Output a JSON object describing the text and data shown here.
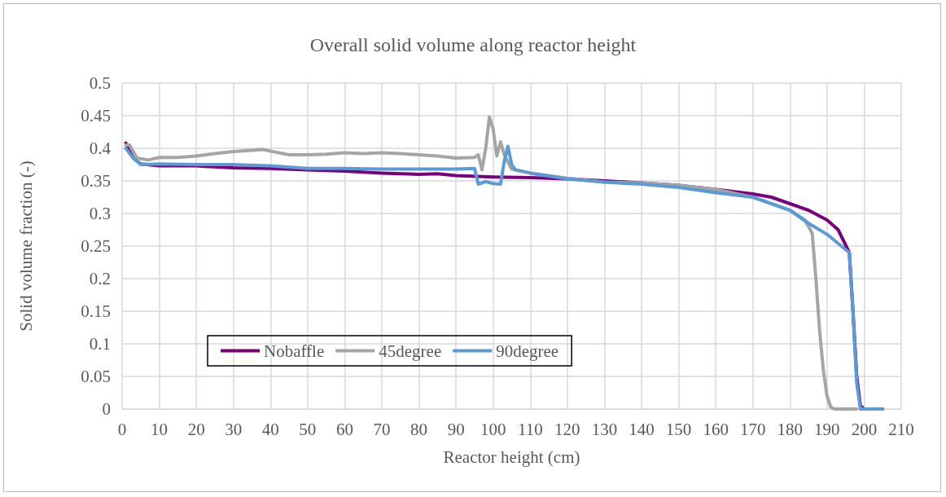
{
  "chart_data": {
    "type": "line",
    "title": "Overall solid volume along reactor height",
    "xlabel": "Reactor height (cm)",
    "ylabel": "Solid volume fraction (-)",
    "xlim": [
      0,
      210
    ],
    "xticks": [
      0,
      10,
      20,
      30,
      40,
      50,
      60,
      70,
      80,
      90,
      100,
      110,
      120,
      130,
      140,
      150,
      160,
      170,
      180,
      190,
      200,
      210
    ],
    "ylim": [
      0,
      0.5
    ],
    "yticks": [
      0,
      0.05,
      0.1,
      0.15,
      0.2,
      0.25,
      0.3,
      0.35,
      0.4,
      0.45,
      0.5
    ],
    "grid": true,
    "legend": "bottom left",
    "marker": "none",
    "line_style": "solid",
    "series": [
      {
        "name": "Nobaffle",
        "color": "#7b007b",
        "x": [
          1,
          3,
          5,
          10,
          20,
          30,
          40,
          50,
          60,
          70,
          80,
          85,
          90,
          100,
          110,
          120,
          130,
          140,
          150,
          160,
          170,
          175,
          180,
          185,
          190,
          193,
          196,
          197,
          198,
          199,
          200,
          205
        ],
        "values": [
          0.408,
          0.385,
          0.376,
          0.373,
          0.373,
          0.37,
          0.369,
          0.367,
          0.365,
          0.362,
          0.36,
          0.361,
          0.358,
          0.356,
          0.355,
          0.353,
          0.35,
          0.347,
          0.343,
          0.337,
          0.33,
          0.325,
          0.315,
          0.305,
          0.29,
          0.275,
          0.24,
          0.15,
          0.05,
          0.005,
          0,
          0
        ]
      },
      {
        "name": "45degree",
        "color": "#a5a5a5",
        "x": [
          1,
          2,
          4,
          7,
          10,
          15,
          20,
          25,
          30,
          35,
          38,
          45,
          50,
          55,
          60,
          65,
          70,
          75,
          80,
          85,
          90,
          95,
          96,
          97,
          98,
          99,
          100,
          101,
          102,
          103,
          105,
          110,
          120,
          130,
          140,
          150,
          160,
          170,
          180,
          184,
          186,
          187,
          188,
          189,
          190,
          191,
          192,
          198
        ],
        "values": [
          0.405,
          0.405,
          0.385,
          0.382,
          0.386,
          0.386,
          0.388,
          0.392,
          0.395,
          0.397,
          0.398,
          0.39,
          0.39,
          0.391,
          0.393,
          0.392,
          0.393,
          0.392,
          0.39,
          0.388,
          0.385,
          0.386,
          0.39,
          0.367,
          0.4,
          0.448,
          0.43,
          0.388,
          0.41,
          0.39,
          0.368,
          0.362,
          0.354,
          0.348,
          0.347,
          0.343,
          0.337,
          0.325,
          0.305,
          0.29,
          0.27,
          0.2,
          0.12,
          0.06,
          0.02,
          0.003,
          0,
          0
        ]
      },
      {
        "name": "90degree",
        "color": "#5b9bd5",
        "x": [
          1,
          3,
          5,
          10,
          20,
          30,
          40,
          50,
          60,
          70,
          80,
          90,
          95,
          96,
          98,
          100,
          102,
          103,
          104,
          105,
          106,
          110,
          120,
          130,
          140,
          150,
          160,
          170,
          180,
          185,
          190,
          196,
          197,
          198,
          199,
          205
        ],
        "values": [
          0.4,
          0.385,
          0.375,
          0.376,
          0.375,
          0.375,
          0.373,
          0.369,
          0.369,
          0.368,
          0.368,
          0.368,
          0.369,
          0.345,
          0.349,
          0.346,
          0.345,
          0.38,
          0.403,
          0.375,
          0.367,
          0.362,
          0.353,
          0.348,
          0.345,
          0.34,
          0.332,
          0.325,
          0.305,
          0.285,
          0.268,
          0.24,
          0.15,
          0.04,
          0,
          0
        ]
      }
    ]
  }
}
